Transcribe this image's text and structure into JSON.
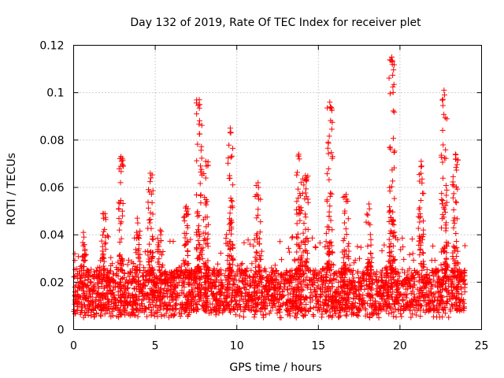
{
  "chart_data": {
    "type": "scatter",
    "title": "Day 132 of 2019, Rate Of TEC Index for receiver plet",
    "xlabel": "GPS time / hours",
    "ylabel": "ROTI / TECUs",
    "xlim": [
      0,
      25
    ],
    "ylim": [
      0,
      0.12
    ],
    "xticks": [
      0,
      5,
      10,
      15,
      20,
      25
    ],
    "yticks": [
      0,
      0.02,
      0.04,
      0.06,
      0.08,
      0.1,
      0.12
    ],
    "xtick_labels": [
      "0",
      "5",
      "10",
      "15",
      "20",
      "25"
    ],
    "ytick_labels": [
      "0",
      "0.02",
      "0.04",
      "0.06",
      "0.08",
      "0.1",
      "0.12"
    ],
    "grid": true,
    "marker": "+",
    "color": "#ff0000",
    "series": [
      {
        "name": "ROTI",
        "band": {
          "x_range": [
            0,
            24
          ],
          "typical_low": 0.008,
          "typical_high": 0.025,
          "point_count": 3000
        },
        "clusters": [
          {
            "x": 0.6,
            "ymax": 0.041
          },
          {
            "x": 1.8,
            "ymax": 0.049
          },
          {
            "x": 2.9,
            "ymax": 0.073
          },
          {
            "x": 3.9,
            "ymax": 0.047
          },
          {
            "x": 4.7,
            "ymax": 0.066
          },
          {
            "x": 5.3,
            "ymax": 0.042
          },
          {
            "x": 6.9,
            "ymax": 0.052
          },
          {
            "x": 7.7,
            "ymax": 0.097
          },
          {
            "x": 8.1,
            "ymax": 0.071
          },
          {
            "x": 9.6,
            "ymax": 0.085
          },
          {
            "x": 11.3,
            "ymax": 0.062
          },
          {
            "x": 13.8,
            "ymax": 0.074
          },
          {
            "x": 14.2,
            "ymax": 0.065
          },
          {
            "x": 15.7,
            "ymax": 0.096
          },
          {
            "x": 16.7,
            "ymax": 0.057
          },
          {
            "x": 18.1,
            "ymax": 0.053
          },
          {
            "x": 19.5,
            "ymax": 0.115
          },
          {
            "x": 21.3,
            "ymax": 0.071
          },
          {
            "x": 22.7,
            "ymax": 0.101
          },
          {
            "x": 23.4,
            "ymax": 0.074
          }
        ]
      }
    ]
  }
}
